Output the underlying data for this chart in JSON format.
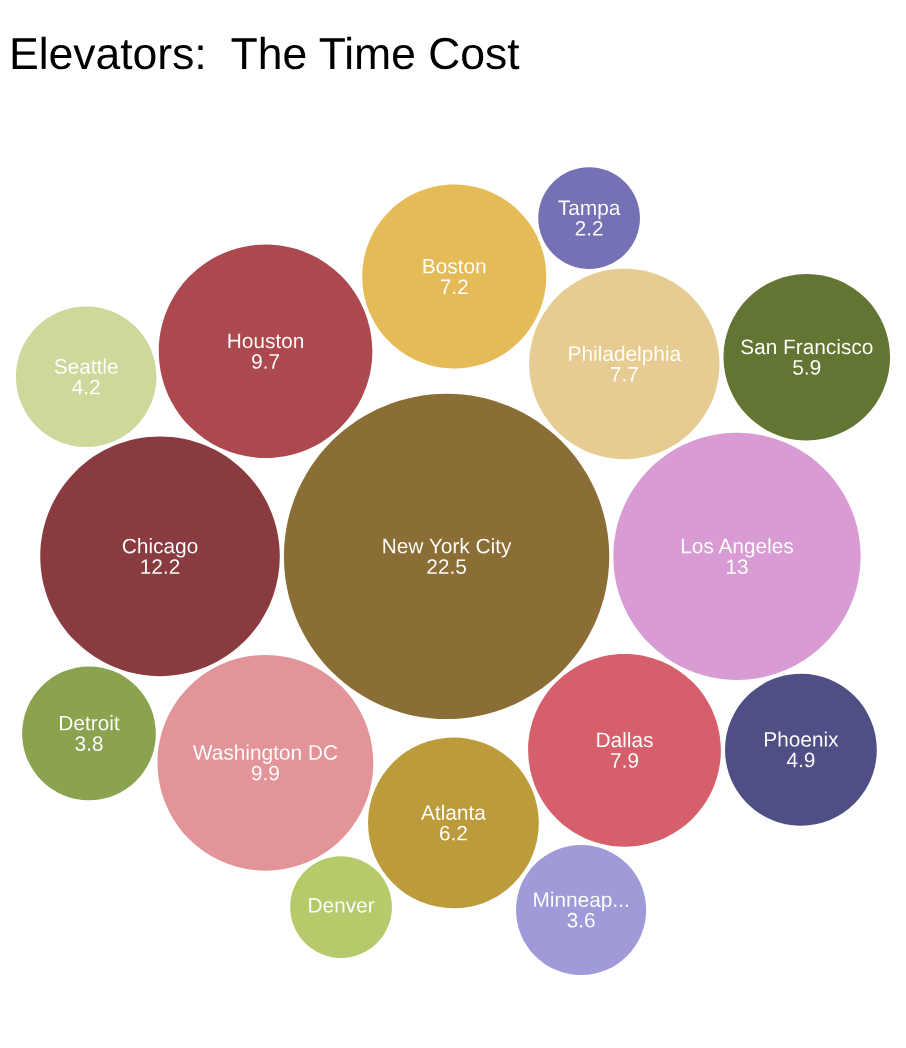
{
  "chart_data": {
    "type": "other",
    "title": "Elevators:  The Time Cost",
    "categories": [
      "New York City",
      "Los Angeles",
      "Chicago",
      "Washington DC",
      "Houston",
      "Dallas",
      "Philadelphia",
      "Boston",
      "Atlanta",
      "San Francisco",
      "Phoenix",
      "Seattle",
      "Detroit",
      "Minneap...",
      "Tampa",
      "Denver"
    ],
    "values": [
      22.5,
      13,
      12.2,
      9.9,
      9.7,
      7.9,
      7.7,
      7.2,
      6.2,
      5.9,
      4.9,
      4.2,
      3.8,
      3.6,
      2.2,
      null
    ],
    "value_labels": [
      "22.5",
      "13",
      "12.2",
      "9.9",
      "9.7",
      "7.9",
      "7.7",
      "7.2",
      "6.2",
      "5.9",
      "4.9",
      "4.2",
      "3.8",
      "3.6",
      "2.2",
      null
    ],
    "colors": [
      "#8b6e35",
      "#d99bd3",
      "#8a3b3f",
      "#e39499",
      "#ab494f",
      "#d5606b",
      "#e6cc92",
      "#e5bb58",
      "#bc9b3b",
      "#627532",
      "#4f4f85",
      "#cdd99a",
      "#8ba34f",
      "#9f9ad8",
      "#7472b5",
      "#b5ca6a"
    ]
  }
}
